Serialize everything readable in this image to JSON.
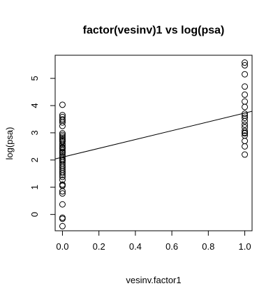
{
  "chart_data": {
    "type": "scatter",
    "title": "factor(vesinv)1 vs log(psa)",
    "xlabel": "vesinv.factor1",
    "ylabel": "log(psa)",
    "xlim": [
      -0.04,
      1.04
    ],
    "ylim": [
      -0.6,
      5.85
    ],
    "x_ticks": [
      0.0,
      0.2,
      0.4,
      0.6,
      0.8,
      1.0
    ],
    "x_tick_labels": [
      "0.0",
      "0.2",
      "0.4",
      "0.6",
      "0.8",
      "1.0"
    ],
    "y_ticks": [
      0,
      1,
      2,
      3,
      4,
      5
    ],
    "y_tick_labels": [
      "0",
      "1",
      "2",
      "3",
      "4",
      "5"
    ],
    "grid": false,
    "marker": "open-circle",
    "point_color": "#000000",
    "line_color": "#000000",
    "series": [
      {
        "x": [
          0,
          0,
          0,
          0,
          0,
          0,
          0,
          0,
          0,
          0,
          0,
          0,
          0,
          0,
          0,
          0,
          0,
          0,
          0,
          0,
          0,
          0,
          0,
          0,
          0,
          0,
          0,
          0,
          0,
          0,
          0,
          0,
          0,
          0,
          0,
          0,
          0,
          0,
          0,
          0,
          0,
          0,
          0,
          0,
          0,
          0,
          1,
          1,
          1,
          1,
          1,
          1,
          1,
          1,
          1,
          1,
          1,
          1,
          1,
          1,
          1,
          1,
          1,
          1,
          1,
          1
        ],
        "y": [
          -0.43,
          -0.16,
          -0.12,
          0.37,
          0.77,
          0.85,
          1.05,
          1.09,
          1.27,
          1.38,
          1.45,
          1.52,
          1.58,
          1.65,
          1.72,
          1.78,
          1.85,
          1.92,
          1.98,
          2.05,
          2.12,
          2.18,
          2.25,
          2.29,
          2.35,
          2.42,
          2.48,
          2.55,
          2.6,
          2.68,
          2.75,
          2.8,
          2.86,
          2.92,
          2.98,
          3.25,
          3.38,
          3.45,
          3.5,
          3.58,
          3.65,
          4.03,
          1.1,
          2.0,
          2.45,
          2.7,
          2.2,
          2.5,
          2.7,
          2.9,
          3.0,
          3.07,
          3.2,
          3.3,
          3.43,
          3.55,
          3.63,
          3.7,
          3.95,
          4.15,
          4.4,
          4.7,
          5.15,
          5.48,
          5.58,
          2.98
        ]
      }
    ],
    "fit_line": {
      "x": [
        -0.04,
        1.04
      ],
      "y": [
        2.04,
        3.79
      ]
    }
  }
}
